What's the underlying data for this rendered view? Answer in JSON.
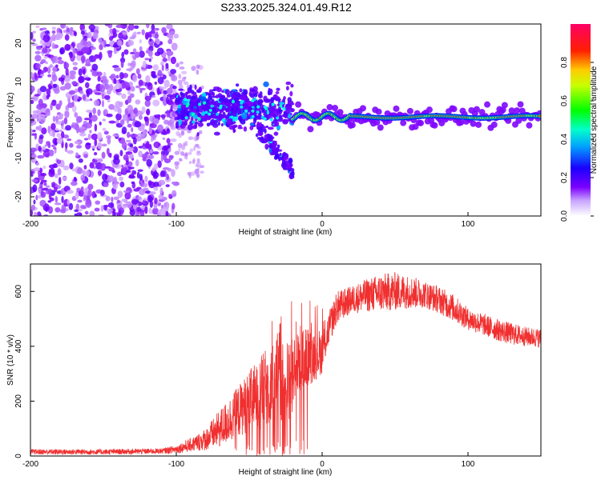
{
  "title": "S233.2025.324.01.49.R12",
  "chart_data": [
    {
      "type": "heatmap",
      "name": "spectrogram",
      "xlabel": "Height of straight line (km)",
      "ylabel": "Frequency (Hz)",
      "xlim": [
        -200,
        150
      ],
      "ylim": [
        -25,
        25
      ],
      "xticks": [
        -200,
        -100,
        0,
        100
      ],
      "yticks": [
        -20,
        -10,
        0,
        10,
        20
      ],
      "x_tick_labels": [
        "-200",
        "-100",
        "0",
        "100"
      ],
      "y_tick_labels": [
        "-20",
        "-10",
        "0",
        "10",
        "20"
      ],
      "colorbar": {
        "label": "Normalized spectral amplitude",
        "range": [
          0,
          1
        ],
        "ticks": [
          0.0,
          0.2,
          0.4,
          0.6,
          0.8
        ],
        "tick_labels": [
          "0.0",
          "0.2",
          "0.4",
          "0.6",
          "0.8"
        ],
        "colors": [
          "#ffffff",
          "#7b00ff",
          "#0000ff",
          "#00ffff",
          "#00ff00",
          "#ffff00",
          "#ff0000",
          "#ff0066"
        ]
      },
      "regions": [
        {
          "x_range": [
            -200,
            -100
          ],
          "f_range": [
            -25,
            25
          ],
          "level": "low",
          "description": "broadband noise"
        },
        {
          "x_range": [
            -100,
            -20
          ],
          "f_range": [
            -15,
            8
          ],
          "level": "medium"
        },
        {
          "x_range": [
            -20,
            150
          ],
          "f_center": 0.8,
          "f_width": 1.5,
          "level": "high",
          "description": "narrow band near 1 Hz"
        }
      ]
    },
    {
      "type": "line",
      "name": "snr",
      "xlabel": "Height of straight line (km)",
      "ylabel": "SNR (10 * v/v)",
      "xlim": [
        -200,
        150
      ],
      "ylim": [
        0,
        700
      ],
      "xticks": [
        -200,
        -100,
        0,
        100
      ],
      "yticks": [
        0,
        200,
        400,
        600
      ],
      "x_tick_labels": [
        "-200",
        "-100",
        "0",
        "100"
      ],
      "y_tick_labels": [
        "0",
        "200",
        "400",
        "600"
      ],
      "color": "#f03030",
      "envelope": {
        "x": [
          -200,
          -150,
          -110,
          -100,
          -90,
          -80,
          -70,
          -60,
          -50,
          -40,
          -30,
          -25,
          -20,
          -15,
          -10,
          0,
          5,
          10,
          20,
          30,
          40,
          50,
          60,
          70,
          80,
          90,
          100,
          110,
          120,
          130,
          140,
          150
        ],
        "y": [
          15,
          15,
          18,
          25,
          40,
          60,
          100,
          150,
          200,
          240,
          280,
          250,
          300,
          340,
          360,
          380,
          470,
          540,
          570,
          585,
          595,
          600,
          598,
          590,
          570,
          540,
          500,
          480,
          460,
          445,
          435,
          430
        ],
        "spread": [
          10,
          10,
          10,
          15,
          25,
          40,
          70,
          90,
          110,
          140,
          150,
          150,
          140,
          130,
          110,
          80,
          60,
          60,
          50,
          60,
          70,
          70,
          60,
          50,
          50,
          50,
          40,
          40,
          40,
          40,
          35,
          35
        ]
      }
    }
  ]
}
